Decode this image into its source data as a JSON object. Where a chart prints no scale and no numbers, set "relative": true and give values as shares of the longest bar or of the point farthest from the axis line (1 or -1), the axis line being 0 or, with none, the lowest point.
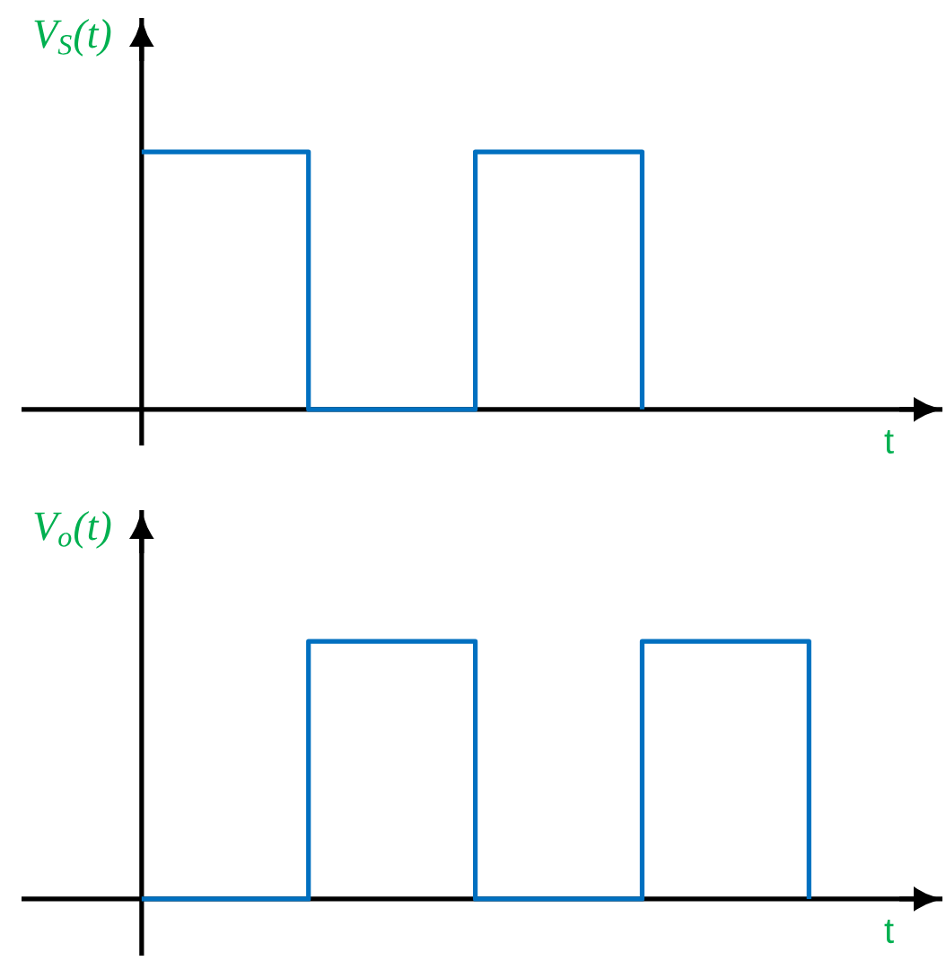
{
  "chart_data": [
    {
      "type": "step",
      "relative": true,
      "ylabel": "V$_{S}$(t)",
      "xlabel": "t",
      "categories": [
        null,
        null,
        null,
        null
      ],
      "values": [
        1,
        0,
        1,
        0
      ],
      "color": "#0070c0"
    },
    {
      "type": "step",
      "relative": true,
      "ylabel": "V$_{o}$(t)",
      "xlabel": "t",
      "categories": [
        null,
        null,
        null,
        null,
        null
      ],
      "values": [
        0,
        1,
        0,
        1,
        0
      ],
      "color": "#0070c0"
    }
  ]
}
